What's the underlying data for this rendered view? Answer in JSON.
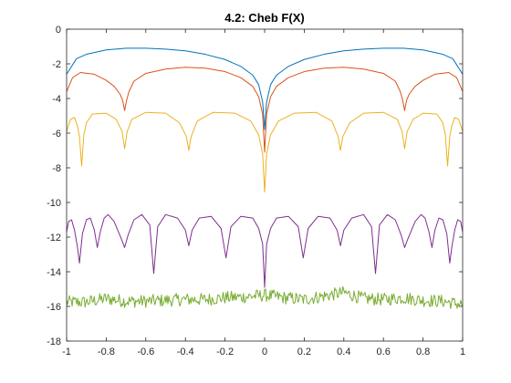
{
  "chart_data": {
    "type": "line",
    "title": "4.2: Cheb F(X)",
    "xlabel": "",
    "ylabel": "",
    "xlim": [
      -1,
      1
    ],
    "ylim": [
      -18,
      0
    ],
    "xticks": [
      -1,
      -0.8,
      -0.6,
      -0.4,
      -0.2,
      0,
      0.2,
      0.4,
      0.6,
      0.8,
      1
    ],
    "xtick_labels": [
      "-1",
      "-0.8",
      "-0.6",
      "-0.4",
      "-0.2",
      "0",
      "0.2",
      "0.4",
      "0.6",
      "0.8",
      "1"
    ],
    "yticks": [
      0,
      -2,
      -4,
      -6,
      -8,
      -10,
      -12,
      -14,
      -16,
      -18
    ],
    "ytick_labels": [
      "0",
      "-2",
      "-4",
      "-6",
      "-8",
      "-10",
      "-12",
      "-14",
      "-16",
      "-18"
    ],
    "grid": false,
    "legend": "none",
    "series": [
      {
        "color": "#0072BD",
        "x": [
          -1,
          -0.95,
          -0.9,
          -0.8,
          -0.7,
          -0.6,
          -0.5,
          -0.4,
          -0.3,
          -0.2,
          -0.12,
          -0.06,
          -0.03,
          -0.01,
          0,
          0.01,
          0.03,
          0.06,
          0.12,
          0.2,
          0.3,
          0.4,
          0.5,
          0.6,
          0.7,
          0.8,
          0.9,
          0.95,
          1
        ],
        "y": [
          -2.6,
          -1.7,
          -1.45,
          -1.2,
          -1.1,
          -1.1,
          -1.15,
          -1.25,
          -1.45,
          -1.75,
          -2.15,
          -2.65,
          -3.2,
          -4.2,
          -5.8,
          -4.2,
          -3.2,
          -2.65,
          -2.15,
          -1.75,
          -1.45,
          -1.25,
          -1.15,
          -1.1,
          -1.1,
          -1.2,
          -1.45,
          -1.7,
          -2.6
        ]
      },
      {
        "color": "#D95319",
        "x": [
          -1,
          -0.97,
          -0.93,
          -0.86,
          -0.8,
          -0.76,
          -0.73,
          -0.717,
          -0.707,
          -0.697,
          -0.685,
          -0.66,
          -0.6,
          -0.5,
          -0.4,
          -0.3,
          -0.2,
          -0.12,
          -0.06,
          -0.03,
          -0.01,
          0,
          0.01,
          0.03,
          0.06,
          0.12,
          0.2,
          0.3,
          0.4,
          0.5,
          0.6,
          0.66,
          0.685,
          0.697,
          0.707,
          0.717,
          0.73,
          0.76,
          0.8,
          0.86,
          0.93,
          0.97,
          1
        ],
        "y": [
          -3.6,
          -2.8,
          -2.5,
          -2.6,
          -2.95,
          -3.3,
          -3.75,
          -4.1,
          -4.7,
          -4.1,
          -3.6,
          -3.0,
          -2.55,
          -2.3,
          -2.2,
          -2.25,
          -2.45,
          -2.8,
          -3.3,
          -3.9,
          -4.9,
          -7.1,
          -4.9,
          -3.9,
          -3.3,
          -2.8,
          -2.45,
          -2.25,
          -2.2,
          -2.3,
          -2.55,
          -3.0,
          -3.6,
          -4.1,
          -4.7,
          -4.1,
          -3.75,
          -3.3,
          -2.95,
          -2.6,
          -2.5,
          -2.8,
          -3.6
        ]
      },
      {
        "color": "#EDB120",
        "x": [
          -1,
          -0.98,
          -0.96,
          -0.945,
          -0.935,
          -0.924,
          -0.913,
          -0.9,
          -0.87,
          -0.8,
          -0.75,
          -0.72,
          -0.707,
          -0.694,
          -0.67,
          -0.6,
          -0.5,
          -0.43,
          -0.395,
          -0.383,
          -0.371,
          -0.34,
          -0.26,
          -0.15,
          -0.07,
          -0.03,
          -0.01,
          0,
          0.01,
          0.03,
          0.07,
          0.15,
          0.26,
          0.34,
          0.371,
          0.383,
          0.395,
          0.43,
          0.5,
          0.6,
          0.67,
          0.694,
          0.707,
          0.72,
          0.75,
          0.8,
          0.87,
          0.9,
          0.913,
          0.924,
          0.935,
          0.945,
          0.96,
          0.98,
          1
        ],
        "y": [
          -5.9,
          -5.2,
          -5.1,
          -5.6,
          -6.2,
          -7.9,
          -6.1,
          -5.4,
          -4.9,
          -4.85,
          -5.2,
          -5.9,
          -6.9,
          -5.9,
          -5.2,
          -4.8,
          -4.85,
          -5.4,
          -6.2,
          -7.0,
          -6.2,
          -5.3,
          -4.8,
          -4.85,
          -5.3,
          -6.1,
          -7.2,
          -9.4,
          -7.2,
          -6.1,
          -5.3,
          -4.85,
          -4.8,
          -5.3,
          -6.2,
          -7.0,
          -6.2,
          -5.4,
          -4.85,
          -4.8,
          -5.2,
          -5.9,
          -6.9,
          -5.9,
          -5.2,
          -4.85,
          -4.9,
          -5.4,
          -6.1,
          -7.9,
          -6.2,
          -5.6,
          -5.1,
          -5.2,
          -5.9
        ]
      },
      {
        "color": "#7E2F8E",
        "x": [
          -1,
          -0.99,
          -0.975,
          -0.96,
          -0.945,
          -0.935,
          -0.92,
          -0.9,
          -0.88,
          -0.86,
          -0.845,
          -0.83,
          -0.81,
          -0.79,
          -0.76,
          -0.72,
          -0.707,
          -0.69,
          -0.66,
          -0.62,
          -0.58,
          -0.56,
          -0.54,
          -0.5,
          -0.44,
          -0.4,
          -0.383,
          -0.366,
          -0.33,
          -0.27,
          -0.22,
          -0.195,
          -0.17,
          -0.12,
          -0.06,
          -0.03,
          -0.01,
          0,
          0.01,
          0.03,
          0.06,
          0.12,
          0.17,
          0.195,
          0.22,
          0.27,
          0.33,
          0.366,
          0.383,
          0.4,
          0.44,
          0.5,
          0.54,
          0.56,
          0.58,
          0.62,
          0.66,
          0.69,
          0.707,
          0.72,
          0.76,
          0.79,
          0.81,
          0.83,
          0.845,
          0.86,
          0.88,
          0.9,
          0.92,
          0.935,
          0.945,
          0.96,
          0.975,
          0.99,
          1
        ],
        "y": [
          -11.7,
          -11.1,
          -11.0,
          -11.6,
          -12.6,
          -13.5,
          -11.8,
          -11.0,
          -10.9,
          -11.6,
          -12.6,
          -11.7,
          -10.9,
          -10.7,
          -11.1,
          -12.2,
          -12.6,
          -11.9,
          -11.0,
          -10.7,
          -11.3,
          -14.1,
          -11.4,
          -10.7,
          -10.9,
          -11.6,
          -12.5,
          -11.6,
          -10.9,
          -10.8,
          -11.5,
          -13.2,
          -11.4,
          -10.8,
          -10.9,
          -11.5,
          -12.4,
          -14.9,
          -12.4,
          -11.5,
          -10.9,
          -10.8,
          -11.4,
          -13.2,
          -11.5,
          -10.8,
          -10.9,
          -11.6,
          -12.5,
          -11.6,
          -10.9,
          -10.7,
          -11.4,
          -14.1,
          -11.3,
          -10.7,
          -11.0,
          -11.9,
          -12.6,
          -12.2,
          -11.1,
          -10.7,
          -10.9,
          -11.7,
          -12.6,
          -11.6,
          -10.9,
          -11.0,
          -11.8,
          -13.5,
          -12.6,
          -11.6,
          -11.0,
          -11.1,
          -11.7
        ]
      },
      {
        "color": "#77AC30",
        "noise": true,
        "x": [
          -1,
          -0.9,
          -0.8,
          -0.7,
          -0.6,
          -0.5,
          -0.4,
          -0.3,
          -0.2,
          -0.1,
          0,
          0.1,
          0.2,
          0.3,
          0.4,
          0.5,
          0.6,
          0.7,
          0.8,
          0.9,
          1
        ],
        "y": [
          -15.75,
          -15.75,
          -15.55,
          -15.7,
          -15.7,
          -15.65,
          -15.6,
          -15.6,
          -15.5,
          -15.45,
          -15.35,
          -15.5,
          -15.6,
          -15.4,
          -15.2,
          -15.55,
          -15.6,
          -15.5,
          -15.65,
          -15.7,
          -15.9
        ]
      }
    ]
  }
}
